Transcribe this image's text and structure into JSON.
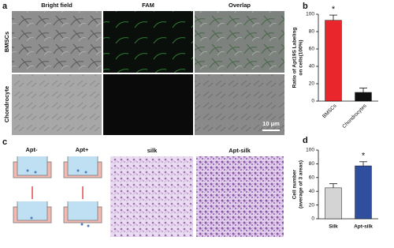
{
  "figure": {
    "panel_a": {
      "label": "a",
      "columns": [
        "Bright field",
        "FAM",
        "Overlap"
      ],
      "rows": [
        "BMSCs",
        "Chondrocyte"
      ],
      "scale_bar": "10 μm"
    },
    "panel_b": {
      "label": "b"
    },
    "panel_c": {
      "label": "c",
      "schematics": [
        "Apt-",
        "Apt+"
      ],
      "images": [
        "silk",
        "Apt-silk"
      ]
    },
    "panel_d": {
      "label": "d"
    }
  },
  "chart_data": [
    {
      "type": "bar",
      "ylabel": [
        "Ratio of Apt19S Labeling",
        "on cells(100%)"
      ],
      "categories": [
        "BMSCs",
        "Chondrocytes"
      ],
      "values": [
        93,
        10
      ],
      "errors": [
        6,
        5
      ],
      "colors": [
        "#e8262c",
        "#111111"
      ],
      "ylim": [
        0,
        100
      ],
      "yticks": [
        0,
        20,
        40,
        60,
        80,
        100
      ],
      "annotation": "*",
      "rotate_labels": true
    },
    {
      "type": "bar",
      "ylabel": [
        "Cell number",
        "(average of 3 areas)"
      ],
      "categories": [
        "Silk",
        "Apt-silk"
      ],
      "values": [
        45,
        77
      ],
      "errors": [
        6,
        6
      ],
      "colors": [
        "#d4d4d4",
        "#2f4f9e"
      ],
      "ylim": [
        0,
        100
      ],
      "yticks": [
        0,
        20,
        40,
        60,
        80,
        100
      ],
      "annotation": "*",
      "rotate_labels": false
    }
  ]
}
